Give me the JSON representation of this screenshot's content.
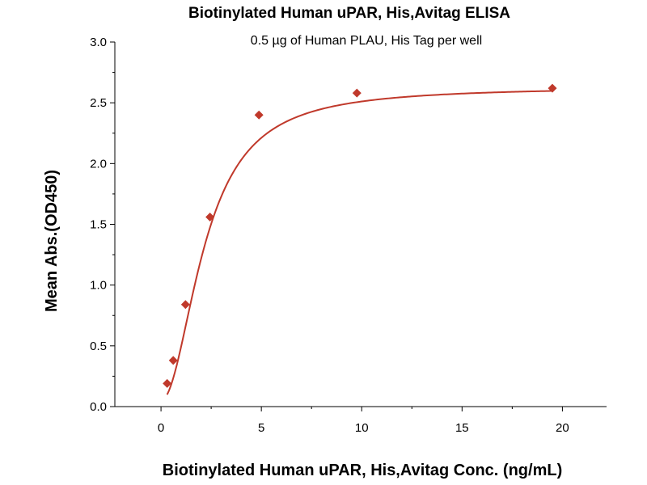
{
  "chart_data": {
    "type": "scatter",
    "title": "Biotinylated Human uPAR, His,Avitag ELISA",
    "subtitle": "0.5 µg of Human PLAU, His Tag per well",
    "xlabel": "Biotinylated Human uPAR, His,Avitag Conc. (ng/mL)",
    "ylabel": "Mean Abs.(OD450)",
    "xlim": [
      -2.3,
      22.2
    ],
    "ylim": [
      0,
      3.0
    ],
    "xticks": [
      0,
      5,
      10,
      15,
      20
    ],
    "yticks": [
      0.0,
      0.5,
      1.0,
      1.5,
      2.0,
      2.5,
      3.0
    ],
    "grid": false,
    "series": [
      {
        "color": "#c0392b",
        "marker": "diamond",
        "x": [
          0.305,
          0.61,
          1.22,
          2.44,
          4.88,
          9.76,
          19.5
        ],
        "y": [
          0.19,
          0.38,
          0.84,
          1.56,
          2.4,
          2.58,
          2.62
        ]
      }
    ],
    "fit_curve": {
      "color": "#c0392b",
      "model": "4PL",
      "bottom": 0.05,
      "top": 2.63,
      "ec50": 2.2,
      "hill": 2.0
    }
  }
}
